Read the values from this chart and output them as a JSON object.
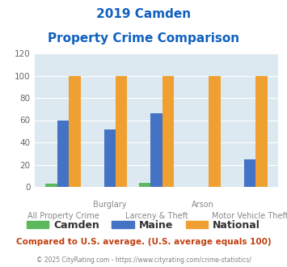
{
  "title_line1": "2019 Camden",
  "title_line2": "Property Crime Comparison",
  "categories": [
    "All Property Crime",
    "Burglary",
    "Larceny & Theft",
    "Arson",
    "Motor Vehicle Theft"
  ],
  "x_top_labels": [
    "",
    "Burglary",
    "",
    "Arson",
    ""
  ],
  "x_bottom_labels": [
    "All Property Crime",
    "",
    "Larceny & Theft",
    "",
    "Motor Vehicle Theft"
  ],
  "camden_values": [
    3,
    0,
    4,
    0,
    0
  ],
  "maine_values": [
    60,
    52,
    66,
    0,
    25
  ],
  "national_values": [
    100,
    100,
    100,
    100,
    100
  ],
  "camden_color": "#5cb85c",
  "maine_color": "#4472c4",
  "national_color": "#f0a030",
  "plot_bg_color": "#dce9f0",
  "ylim": [
    0,
    120
  ],
  "yticks": [
    0,
    20,
    40,
    60,
    80,
    100,
    120
  ],
  "legend_labels": [
    "Camden",
    "Maine",
    "National"
  ],
  "footer_text1": "Compared to U.S. average. (U.S. average equals 100)",
  "footer_text2": "© 2025 CityRating.com - https://www.cityrating.com/crime-statistics/",
  "title_color": "#1060c0",
  "footer1_color": "#c04010",
  "footer2_color": "#808080"
}
